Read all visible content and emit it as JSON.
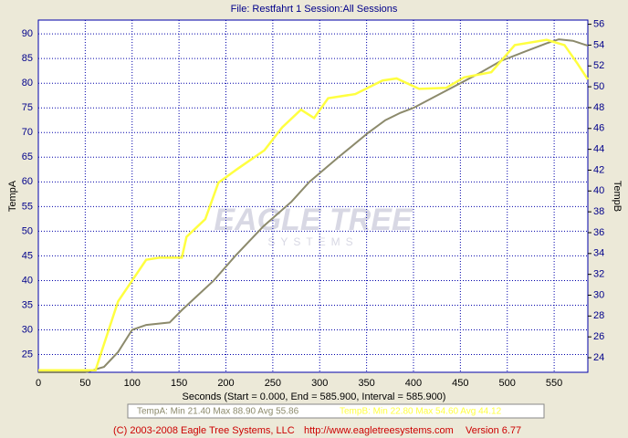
{
  "chart_data": {
    "type": "line",
    "title": "File: Restfahrt 1   Session:All Sessions",
    "xlabel": "Seconds (Start = 0.000,  End = 585.900,  Interval = 585.900)",
    "ylabel": "TempA",
    "y2label": "TempB",
    "watermark": [
      "EAGLE TREE",
      "SYSTEMS"
    ],
    "footer": [
      "(C) 2003-2008 Eagle Tree Systems, LLC",
      "http://www.eagletreesystems.com",
      "Version 6.77"
    ],
    "xlim": [
      0,
      585.9
    ],
    "xticks": [
      0,
      50,
      100,
      150,
      200,
      250,
      300,
      350,
      400,
      450,
      500,
      550
    ],
    "ylim": [
      21.4,
      92.8
    ],
    "yticks": [
      25,
      30,
      35,
      40,
      45,
      50,
      55,
      60,
      65,
      70,
      75,
      80,
      85,
      90
    ],
    "y2lim": [
      22.6,
      56.4
    ],
    "y2ticks": [
      24,
      26,
      28,
      30,
      32,
      34,
      36,
      38,
      40,
      42,
      44,
      46,
      48,
      50,
      52,
      54,
      56
    ],
    "grid": true,
    "series": [
      {
        "label": "TempA:  Min 21.40   Max 88.90   Avg 55.86",
        "color": "#8c8a6c",
        "x": [
          0,
          50,
          70,
          85,
          100,
          115,
          140,
          153,
          170,
          187,
          210,
          240,
          270,
          289,
          320,
          352,
          370,
          386,
          400,
          420,
          445,
          470,
          493,
          520,
          542,
          555,
          570,
          585.9
        ],
        "values": [
          21.4,
          21.4,
          22.5,
          25.5,
          30,
          31,
          31.5,
          34,
          37,
          40,
          45,
          51,
          56,
          60,
          65,
          70,
          72.5,
          74,
          75,
          77,
          79.5,
          82,
          84.5,
          86.5,
          88.1,
          88.9,
          88.6,
          87.6
        ]
      },
      {
        "label": "TempB:  Min 22.80   Max 54.60   Avg 44.12",
        "color": "#ffff40",
        "axis": "y2",
        "x": [
          0,
          61,
          66,
          85,
          115,
          129,
          153,
          158,
          178,
          192,
          212,
          241,
          260,
          280,
          294,
          309,
          338,
          367,
          382,
          406,
          435,
          454,
          483,
          508,
          542,
          561,
          575,
          585.9
        ],
        "values": [
          22.8,
          22.8,
          24.2,
          29.4,
          33.4,
          33.6,
          33.6,
          35.6,
          37.3,
          40.8,
          42.1,
          43.9,
          46.1,
          47.8,
          47,
          48.9,
          49.3,
          50.6,
          50.8,
          49.8,
          49.9,
          50.9,
          51.4,
          54,
          54.5,
          54,
          52.2,
          50.7
        ]
      }
    ]
  }
}
